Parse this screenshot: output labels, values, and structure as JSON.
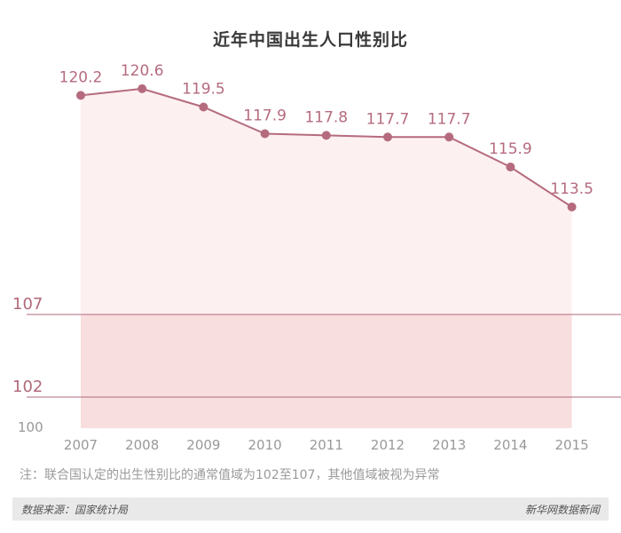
{
  "chart_data": {
    "type": "area",
    "title": "近年中国出生人口性别比",
    "categories": [
      "2007",
      "2008",
      "2009",
      "2010",
      "2011",
      "2012",
      "2013",
      "2014",
      "2015"
    ],
    "series": [
      {
        "values": [
          120.2,
          120.6,
          119.5,
          117.9,
          117.8,
          117.7,
          117.7,
          115.9,
          113.5
        ]
      }
    ],
    "data_labels": [
      "120.2",
      "120.6",
      "119.5",
      "117.9",
      "117.8",
      "117.7",
      "117.7",
      "115.9",
      "113.5"
    ],
    "reference_lines": [
      {
        "value": 107,
        "label": "107"
      },
      {
        "value": 102,
        "label": "102"
      }
    ],
    "normal_range": [
      102,
      107
    ],
    "y_axis_min_label": "100",
    "grid": false,
    "colors": {
      "line": "#b56b7e",
      "area_upper": "#fdf0f0",
      "area_lower": "#f8dede",
      "reference": "#b06a7a",
      "value_label": "#b56b7e",
      "axis_label": "#999999"
    }
  },
  "note": "注：联合国认定的出生性别比的通常值域为102至107，其他值域被视为异常",
  "footer": {
    "source": "数据来源：国家统计局",
    "brand": "新华网数据新闻"
  }
}
